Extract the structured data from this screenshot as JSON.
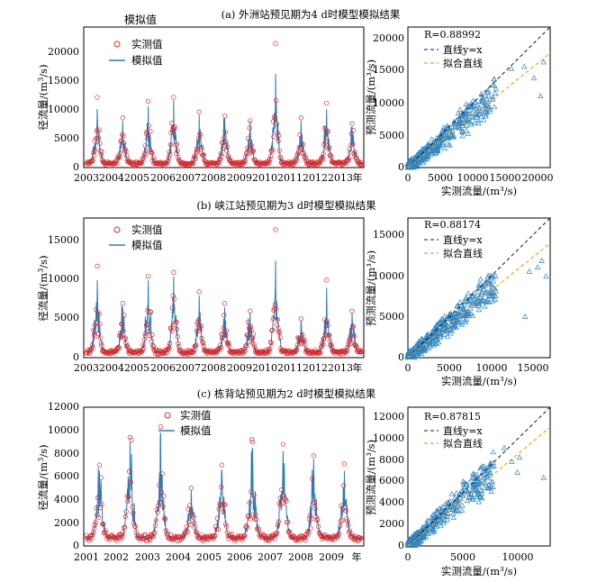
{
  "panels": [
    {
      "title": "(a) 外洲站预见期为4 d时模型模拟结果",
      "ts": {
        "extra_label": "模拟值",
        "ylabel_main": "径流量/(m",
        "ylabel_sup": "3",
        "ylabel_tail": "/s)",
        "legend": [
          "实测值",
          "模拟值"
        ],
        "x_ticks": [
          "2003",
          "2004",
          "2005",
          "2006",
          "2007",
          "2008",
          "2009",
          "2010",
          "2011",
          "2012",
          "2013"
        ],
        "x_suffix": "年",
        "y_ticks": [
          "0",
          "5000",
          "10000",
          "15000",
          "20000"
        ]
      },
      "sc": {
        "r_text": "R=0.88992",
        "legend": [
          "直线y=x",
          "拟合直线"
        ],
        "xlabel": "实测流量/(m³/s)",
        "ylabel": "预测流量/(m³/s)",
        "x_ticks": [
          "0",
          "5000",
          "10000",
          "15000",
          "20000"
        ],
        "y_ticks": [
          "0",
          "5000",
          "10000",
          "15000",
          "20000"
        ]
      }
    },
    {
      "title": "(b) 峡江站预见期为3 d时模型模拟结果",
      "ts": {
        "ylabel_main": "径流量/(m",
        "ylabel_sup": "3",
        "ylabel_tail": "/s)",
        "legend": [
          "实测值",
          "模拟值"
        ],
        "x_ticks": [
          "2003",
          "2004",
          "2005",
          "2006",
          "2007",
          "2008",
          "2009",
          "2010",
          "2011",
          "2012",
          "2013"
        ],
        "x_suffix": "年",
        "y_ticks": [
          "0",
          "5000",
          "10000",
          "15000"
        ]
      },
      "sc": {
        "r_text": "R=0.88174",
        "legend": [
          "直线y=x",
          "拟合直线"
        ],
        "xlabel": "实测流量/(m³/s)",
        "ylabel": "预测流量/(m³/s)",
        "x_ticks": [
          "0",
          "5000",
          "10000",
          "15000"
        ],
        "y_ticks": [
          "0",
          "5000",
          "10000",
          "15000"
        ]
      }
    },
    {
      "title": "(c) 栋背站预见期为2 d时模型模拟结果",
      "ts": {
        "ylabel_main": "径流量/(m",
        "ylabel_sup": "3",
        "ylabel_tail": "/s)",
        "legend": [
          "实测值",
          "模拟值"
        ],
        "x_ticks": [
          "2001",
          "2002",
          "2003",
          "2004",
          "2005",
          "2006",
          "2007",
          "2008",
          "2009"
        ],
        "x_suffix": "年",
        "y_ticks": [
          "0",
          "2000",
          "4000",
          "6000",
          "8000",
          "10000",
          "12000"
        ]
      },
      "sc": {
        "r_text": "R=0.87815",
        "legend": [
          "直线y=x",
          "拟合直线"
        ],
        "xlabel": "实测流量/(m³/s)",
        "ylabel": "预测流量/(m³/s)",
        "x_ticks": [
          "0",
          "5000",
          "10000"
        ],
        "y_ticks": [
          "0",
          "2000",
          "4000",
          "6000",
          "8000",
          "10000",
          "12000"
        ]
      }
    }
  ],
  "colors": {
    "observed": "#e0292b",
    "simulated": "#2b7bba",
    "scatter": "#2f86c5",
    "identity": "#1a1a1a",
    "fit": "#f2a31b"
  },
  "chart_data": [
    {
      "type": "line",
      "title": "(a) 外洲站预见期为4 d时模型模拟结果",
      "ylabel": "径流量/(m3/s)",
      "ylim": [
        0,
        24000
      ],
      "x": [
        "2003",
        "2004",
        "2005",
        "2006",
        "2007",
        "2008",
        "2009",
        "2010",
        "2011",
        "2012",
        "2013"
      ],
      "series": [
        {
          "name": "实测值",
          "annual_peak": [
            12000,
            8500,
            11300,
            12000,
            9500,
            8800,
            8000,
            21200,
            8500,
            11000,
            7500
          ]
        },
        {
          "name": "模拟值",
          "annual_peak": [
            10000,
            8000,
            10500,
            11500,
            9000,
            8500,
            8000,
            16000,
            8000,
            10000,
            7000
          ]
        }
      ]
    },
    {
      "type": "scatter",
      "title": "外洲站 实测 vs 预测",
      "r": 0.88992,
      "xlim": [
        0,
        22000
      ],
      "ylim": [
        0,
        22000
      ],
      "xlabel": "实测流量/(m³/s)",
      "ylabel": "预测流量/(m³/s)",
      "identity_line": [
        [
          0,
          0
        ],
        [
          22000,
          22000
        ]
      ],
      "fit_line": [
        [
          0,
          0
        ],
        [
          22000,
          17800
        ]
      ],
      "notable_points": [
        [
          16000,
          15500
        ],
        [
          20500,
          11200
        ],
        [
          21000,
          16500
        ],
        [
          19500,
          14000
        ],
        [
          18000,
          15800
        ]
      ]
    },
    {
      "type": "line",
      "title": "(b) 峡江站预见期为3 d时模型模拟结果",
      "ylabel": "径流量/(m3/s)",
      "ylim": [
        0,
        18000
      ],
      "x": [
        "2003",
        "2004",
        "2005",
        "2006",
        "2007",
        "2008",
        "2009",
        "2010",
        "2011",
        "2012",
        "2013"
      ],
      "series": [
        {
          "name": "实测值",
          "annual_peak": [
            11800,
            7000,
            10500,
            11000,
            8500,
            7000,
            6000,
            16500,
            5000,
            10000,
            6000
          ]
        },
        {
          "name": "模拟值",
          "annual_peak": [
            10000,
            6500,
            10000,
            10500,
            8000,
            6500,
            5800,
            12500,
            4800,
            9000,
            5800
          ]
        }
      ]
    },
    {
      "type": "scatter",
      "title": "峡江站 实测 vs 预测",
      "r": 0.88174,
      "xlim": [
        0,
        17000
      ],
      "ylim": [
        0,
        17000
      ],
      "xlabel": "实测流量/(m³/s)",
      "ylabel": "预测流量/(m³/s)",
      "identity_line": [
        [
          0,
          0
        ],
        [
          17000,
          17000
        ]
      ],
      "fit_line": [
        [
          0,
          0
        ],
        [
          17000,
          14000
        ]
      ],
      "notable_points": [
        [
          14000,
          5000
        ],
        [
          16500,
          9900
        ],
        [
          16000,
          11800
        ],
        [
          15500,
          11000
        ],
        [
          14500,
          10500
        ]
      ]
    },
    {
      "type": "line",
      "title": "(c) 栋背站预见期为2 d时模型模拟结果",
      "ylabel": "径流量/(m3/s)",
      "ylim": [
        0,
        12000
      ],
      "x": [
        "2001",
        "2002",
        "2003",
        "2004",
        "2005",
        "2006",
        "2007",
        "2008",
        "2009"
      ],
      "series": [
        {
          "name": "实测值",
          "annual_peak": [
            7000,
            9400,
            10300,
            5000,
            7000,
            9000,
            8800,
            7800,
            7100
          ]
        },
        {
          "name": "模拟值",
          "annual_peak": [
            6500,
            9000,
            9800,
            4800,
            6600,
            8500,
            8200,
            7500,
            6500
          ]
        }
      ]
    },
    {
      "type": "scatter",
      "title": "栋背站 实测 vs 预测",
      "r": 0.87815,
      "xlim": [
        0,
        13000
      ],
      "ylim": [
        0,
        13000
      ],
      "xlabel": "实测流量/(m³/s)",
      "ylabel": "预测流量/(m³/s)",
      "identity_line": [
        [
          0,
          0
        ],
        [
          13000,
          13000
        ]
      ],
      "fit_line": [
        [
          0,
          0
        ],
        [
          13000,
          11100
        ]
      ],
      "notable_points": [
        [
          12400,
          6400
        ],
        [
          10200,
          8300
        ],
        [
          9500,
          7900
        ],
        [
          8800,
          9200
        ],
        [
          10000,
          6900
        ]
      ]
    }
  ]
}
